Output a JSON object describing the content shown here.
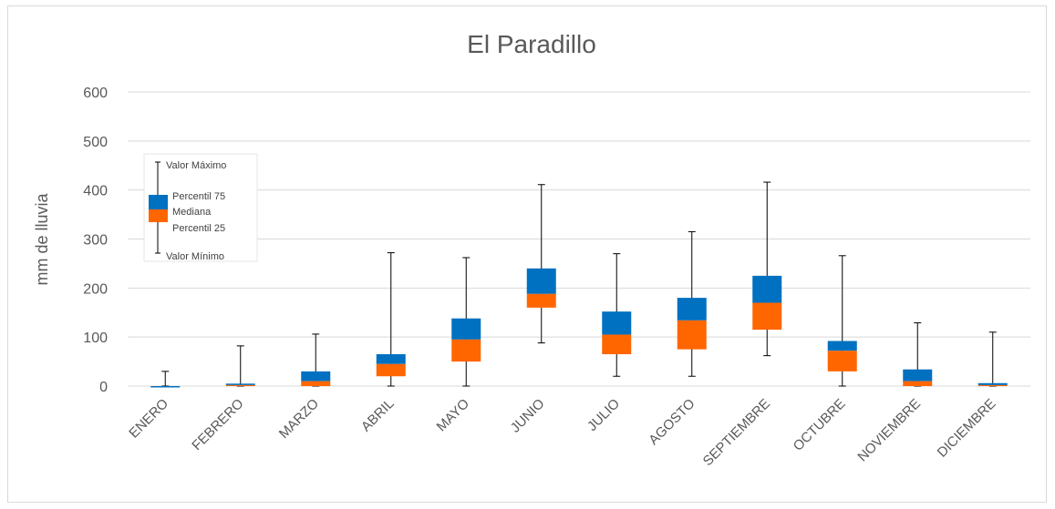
{
  "chart_data": {
    "type": "boxplot",
    "title": "El Paradillo",
    "xlabel": "",
    "ylabel": "mm de lluvia",
    "ylim": [
      0,
      600
    ],
    "yticks": [
      0,
      100,
      200,
      300,
      400,
      500,
      600
    ],
    "grid": true,
    "colors": {
      "p75_box": "#0070C0",
      "p25_box": "#FF6600",
      "whisker": "#000000",
      "grid": "#d9d9d9"
    },
    "legend": {
      "max": "Valor Máximo",
      "p75": "Percentil 75",
      "median": "Mediana",
      "p25": "Percentil 25",
      "min": "Valor Mínimo"
    },
    "categories": [
      "ENERO",
      "FEBRERO",
      "MARZO",
      "ABRIL",
      "MAYO",
      "JUNIO",
      "JULIO",
      "AGOSTO",
      "SEPTIEMBRE",
      "OCTUBRE",
      "NOVIEMBRE",
      "DICIEMBRE"
    ],
    "series": [
      {
        "name": "Valor Máximo",
        "values": [
          30,
          82,
          106,
          272,
          262,
          411,
          270,
          315,
          416,
          266,
          129,
          110
        ]
      },
      {
        "name": "Percentil 75",
        "values": [
          0,
          5,
          30,
          65,
          138,
          240,
          152,
          180,
          225,
          92,
          34,
          6
        ]
      },
      {
        "name": "Mediana",
        "values": [
          0,
          2,
          10,
          45,
          95,
          188,
          105,
          134,
          170,
          72,
          10,
          2
        ]
      },
      {
        "name": "Percentil 25",
        "values": [
          0,
          0,
          0,
          20,
          50,
          160,
          65,
          75,
          115,
          30,
          0,
          0
        ]
      },
      {
        "name": "Valor Mínimo",
        "values": [
          0,
          0,
          0,
          0,
          0,
          88,
          20,
          20,
          62,
          0,
          0,
          0
        ]
      }
    ]
  }
}
